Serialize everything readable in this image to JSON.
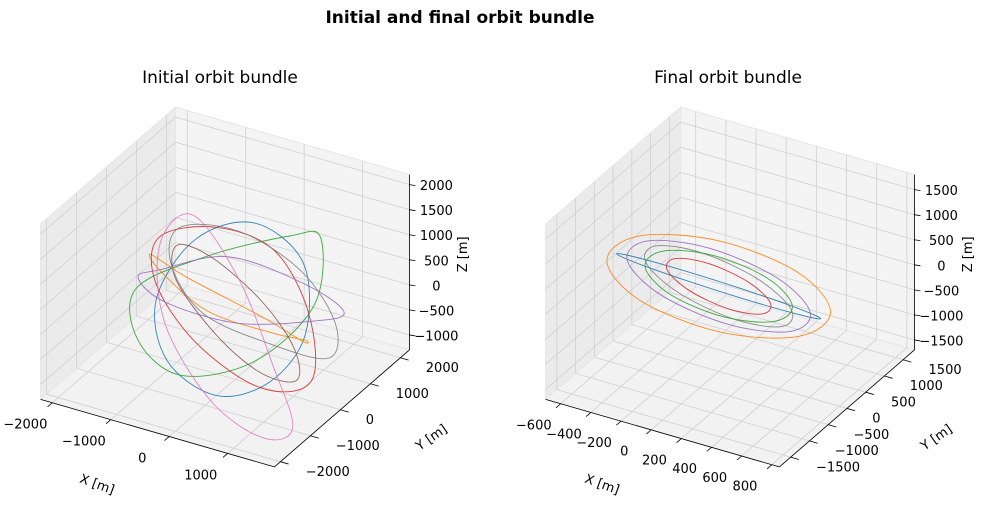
{
  "title": "Initial and final orbit bundle",
  "chart_data": [
    {
      "type": "line3d",
      "title": "Initial orbit bundle",
      "xlabel": "X [m]",
      "ylabel": "Y [m]",
      "zlabel": "Z [m]",
      "xlim": [
        -2200,
        1800
      ],
      "ylim": [
        -2200,
        2300
      ],
      "zlim": [
        -1300,
        2200
      ],
      "xticks": [
        {
          "value": -2000,
          "label": "−2000"
        },
        {
          "value": -1000,
          "label": "−1000"
        },
        0,
        1000
      ],
      "yticks": [
        {
          "value": -2000,
          "label": "−2000"
        },
        {
          "value": -1000,
          "label": "−1000"
        },
        0,
        1000,
        2000
      ],
      "zticks": [
        {
          "value": -1000,
          "label": "−1000"
        },
        {
          "value": -500,
          "label": "−500"
        },
        0,
        500,
        1000,
        1500,
        2000
      ],
      "grid": true,
      "series": [
        {
          "color": "#1f77b4",
          "x": [
            1200,
            700,
            -300,
            -1100,
            -1300,
            -700,
            300,
            1000
          ],
          "y": [
            0,
            900,
            1200,
            800,
            -100,
            -900,
            -1200,
            -800
          ],
          "z": [
            0,
            800,
            1100,
            700,
            -100,
            -700,
            -900,
            -600
          ]
        },
        {
          "color": "#ff7f0e",
          "x": [
            1500,
            900,
            -200,
            -1400,
            -1600,
            -900,
            200,
            1200
          ],
          "y": [
            -600,
            500,
            1300,
            1100,
            300,
            -700,
            -1300,
            -1100
          ],
          "z": [
            300,
            -500,
            -800,
            -300,
            500,
            900,
            800,
            600
          ]
        },
        {
          "color": "#2ca02c",
          "x": [
            -1800,
            -1000,
            200,
            1000,
            1400,
            800,
            -300,
            -1300
          ],
          "y": [
            200,
            1000,
            1400,
            900,
            -100,
            -900,
            -1200,
            -700
          ],
          "z": [
            -200,
            300,
            900,
            1400,
            700,
            -200,
            -700,
            -600
          ]
        },
        {
          "color": "#d62728",
          "x": [
            0,
            800,
            1300,
            900,
            0,
            -900,
            -1300,
            -800
          ],
          "y": [
            1300,
            900,
            0,
            -900,
            -1300,
            -900,
            0,
            900
          ],
          "z": [
            600,
            -200,
            -900,
            -700,
            100,
            800,
            1100,
            1000
          ]
        },
        {
          "color": "#9467bd",
          "x": [
            -500,
            400,
            1200,
            1300,
            500,
            -600,
            -1300,
            -1200
          ],
          "y": [
            -1500,
            -1000,
            0,
            1100,
            1600,
            1200,
            200,
            -900
          ],
          "z": [
            1500,
            1800,
            1000,
            -100,
            -800,
            -1000,
            -300,
            800
          ]
        },
        {
          "color": "#8c564b",
          "x": [
            900,
            300,
            -600,
            -1100,
            -900,
            -200,
            600,
            1100
          ],
          "y": [
            -900,
            -1200,
            -800,
            200,
            1000,
            1300,
            800,
            -100
          ],
          "z": [
            -400,
            300,
            900,
            900,
            300,
            -500,
            -900,
            -900
          ]
        },
        {
          "color": "#e377c2",
          "x": [
            1600,
            800,
            -400,
            -1500,
            -1700,
            -1000,
            300,
            1300
          ],
          "y": [
            -1200,
            -300,
            900,
            1500,
            800,
            -400,
            -1400,
            -1600
          ],
          "z": [
            -1100,
            -600,
            100,
            700,
            400,
            -300,
            -900,
            -1200
          ]
        },
        {
          "color": "#7f7f7f",
          "x": [
            -800,
            200,
            1200,
            1700,
            1100,
            0,
            -1000,
            -1400
          ],
          "y": [
            1700,
            1800,
            1000,
            -200,
            -1000,
            -1100,
            -200,
            900
          ],
          "z": [
            500,
            0,
            -300,
            -200,
            300,
            600,
            800,
            800
          ]
        }
      ]
    },
    {
      "type": "line3d",
      "title": "Final orbit bundle",
      "xlabel": "X [m]",
      "ylabel": "Y [m]",
      "zlabel": "Z [m]",
      "xlim": [
        -700,
        850
      ],
      "ylim": [
        -1800,
        1800
      ],
      "zlim": [
        -1700,
        1800
      ],
      "xticks": [
        {
          "value": -600,
          "label": "−600"
        },
        {
          "value": -400,
          "label": "−400"
        },
        {
          "value": -200,
          "label": "−200"
        },
        0,
        200,
        400,
        600,
        800
      ],
      "yticks": [
        {
          "value": -1500,
          "label": "−1500"
        },
        {
          "value": -1000,
          "label": "−1000"
        },
        {
          "value": -500,
          "label": "−500"
        },
        0,
        500,
        1000,
        1500
      ],
      "zticks": [
        {
          "value": -1500,
          "label": "−1500"
        },
        {
          "value": -1000,
          "label": "−1000"
        },
        {
          "value": -500,
          "label": "−500"
        },
        0,
        500,
        1000,
        1500
      ],
      "grid": true,
      "series": [
        {
          "color": "#1f77b4",
          "x": [
            650,
            481,
            30,
            -438,
            -650,
            -481,
            -30,
            438
          ],
          "y": [
            100,
            113,
            60,
            -28,
            -100,
            -113,
            -60,
            28
          ],
          "z": [
            -150,
            -78,
            40,
            134,
            150,
            78,
            -40,
            -134
          ]
        },
        {
          "color": "#ff7f0e",
          "x": [
            -250,
            106,
            400,
            460,
            250,
            -106,
            -400,
            -460
          ],
          "y": [
            -1100,
            -424,
            500,
            1131,
            1100,
            424,
            -500,
            -1131
          ],
          "z": [
            1500,
            1273,
            300,
            -848,
            -1500,
            -1273,
            -300,
            848
          ]
        },
        {
          "color": "#9467bd",
          "x": [
            -225,
            53,
            300,
            371,
            225,
            -53,
            -300,
            -371
          ],
          "y": [
            -990,
            -452,
            350,
            947,
            990,
            452,
            -350,
            -947
          ],
          "z": [
            1350,
            1096,
            200,
            -813,
            -1350,
            -1096,
            -200,
            813
          ]
        },
        {
          "color": "#7f7f7f",
          "x": [
            -200,
            0,
            200,
            283,
            200,
            0,
            -200,
            -283
          ],
          "y": [
            -880,
            -445,
            250,
            799,
            880,
            445,
            -250,
            -799
          ],
          "z": [
            1200,
            954,
            150,
            -742,
            -1200,
            -954,
            -150,
            742
          ]
        },
        {
          "color": "#2ca02c",
          "x": [
            -175,
            53,
            250,
            300,
            175,
            -53,
            -250,
            -300
          ],
          "y": [
            -770,
            -332,
            300,
            756,
            770,
            332,
            -300,
            -756
          ],
          "z": [
            1050,
            870,
            180,
            -615,
            -1050,
            -870,
            -180,
            615
          ]
        },
        {
          "color": "#d62728",
          "x": [
            -138,
            8,
            150,
            204,
            138,
            -8,
            -150,
            -204
          ],
          "y": [
            -605,
            -300,
            180,
            555,
            605,
            300,
            -180,
            -555
          ],
          "z": [
            825,
            654,
            100,
            -513,
            -825,
            -654,
            -100,
            513
          ]
        }
      ]
    }
  ]
}
